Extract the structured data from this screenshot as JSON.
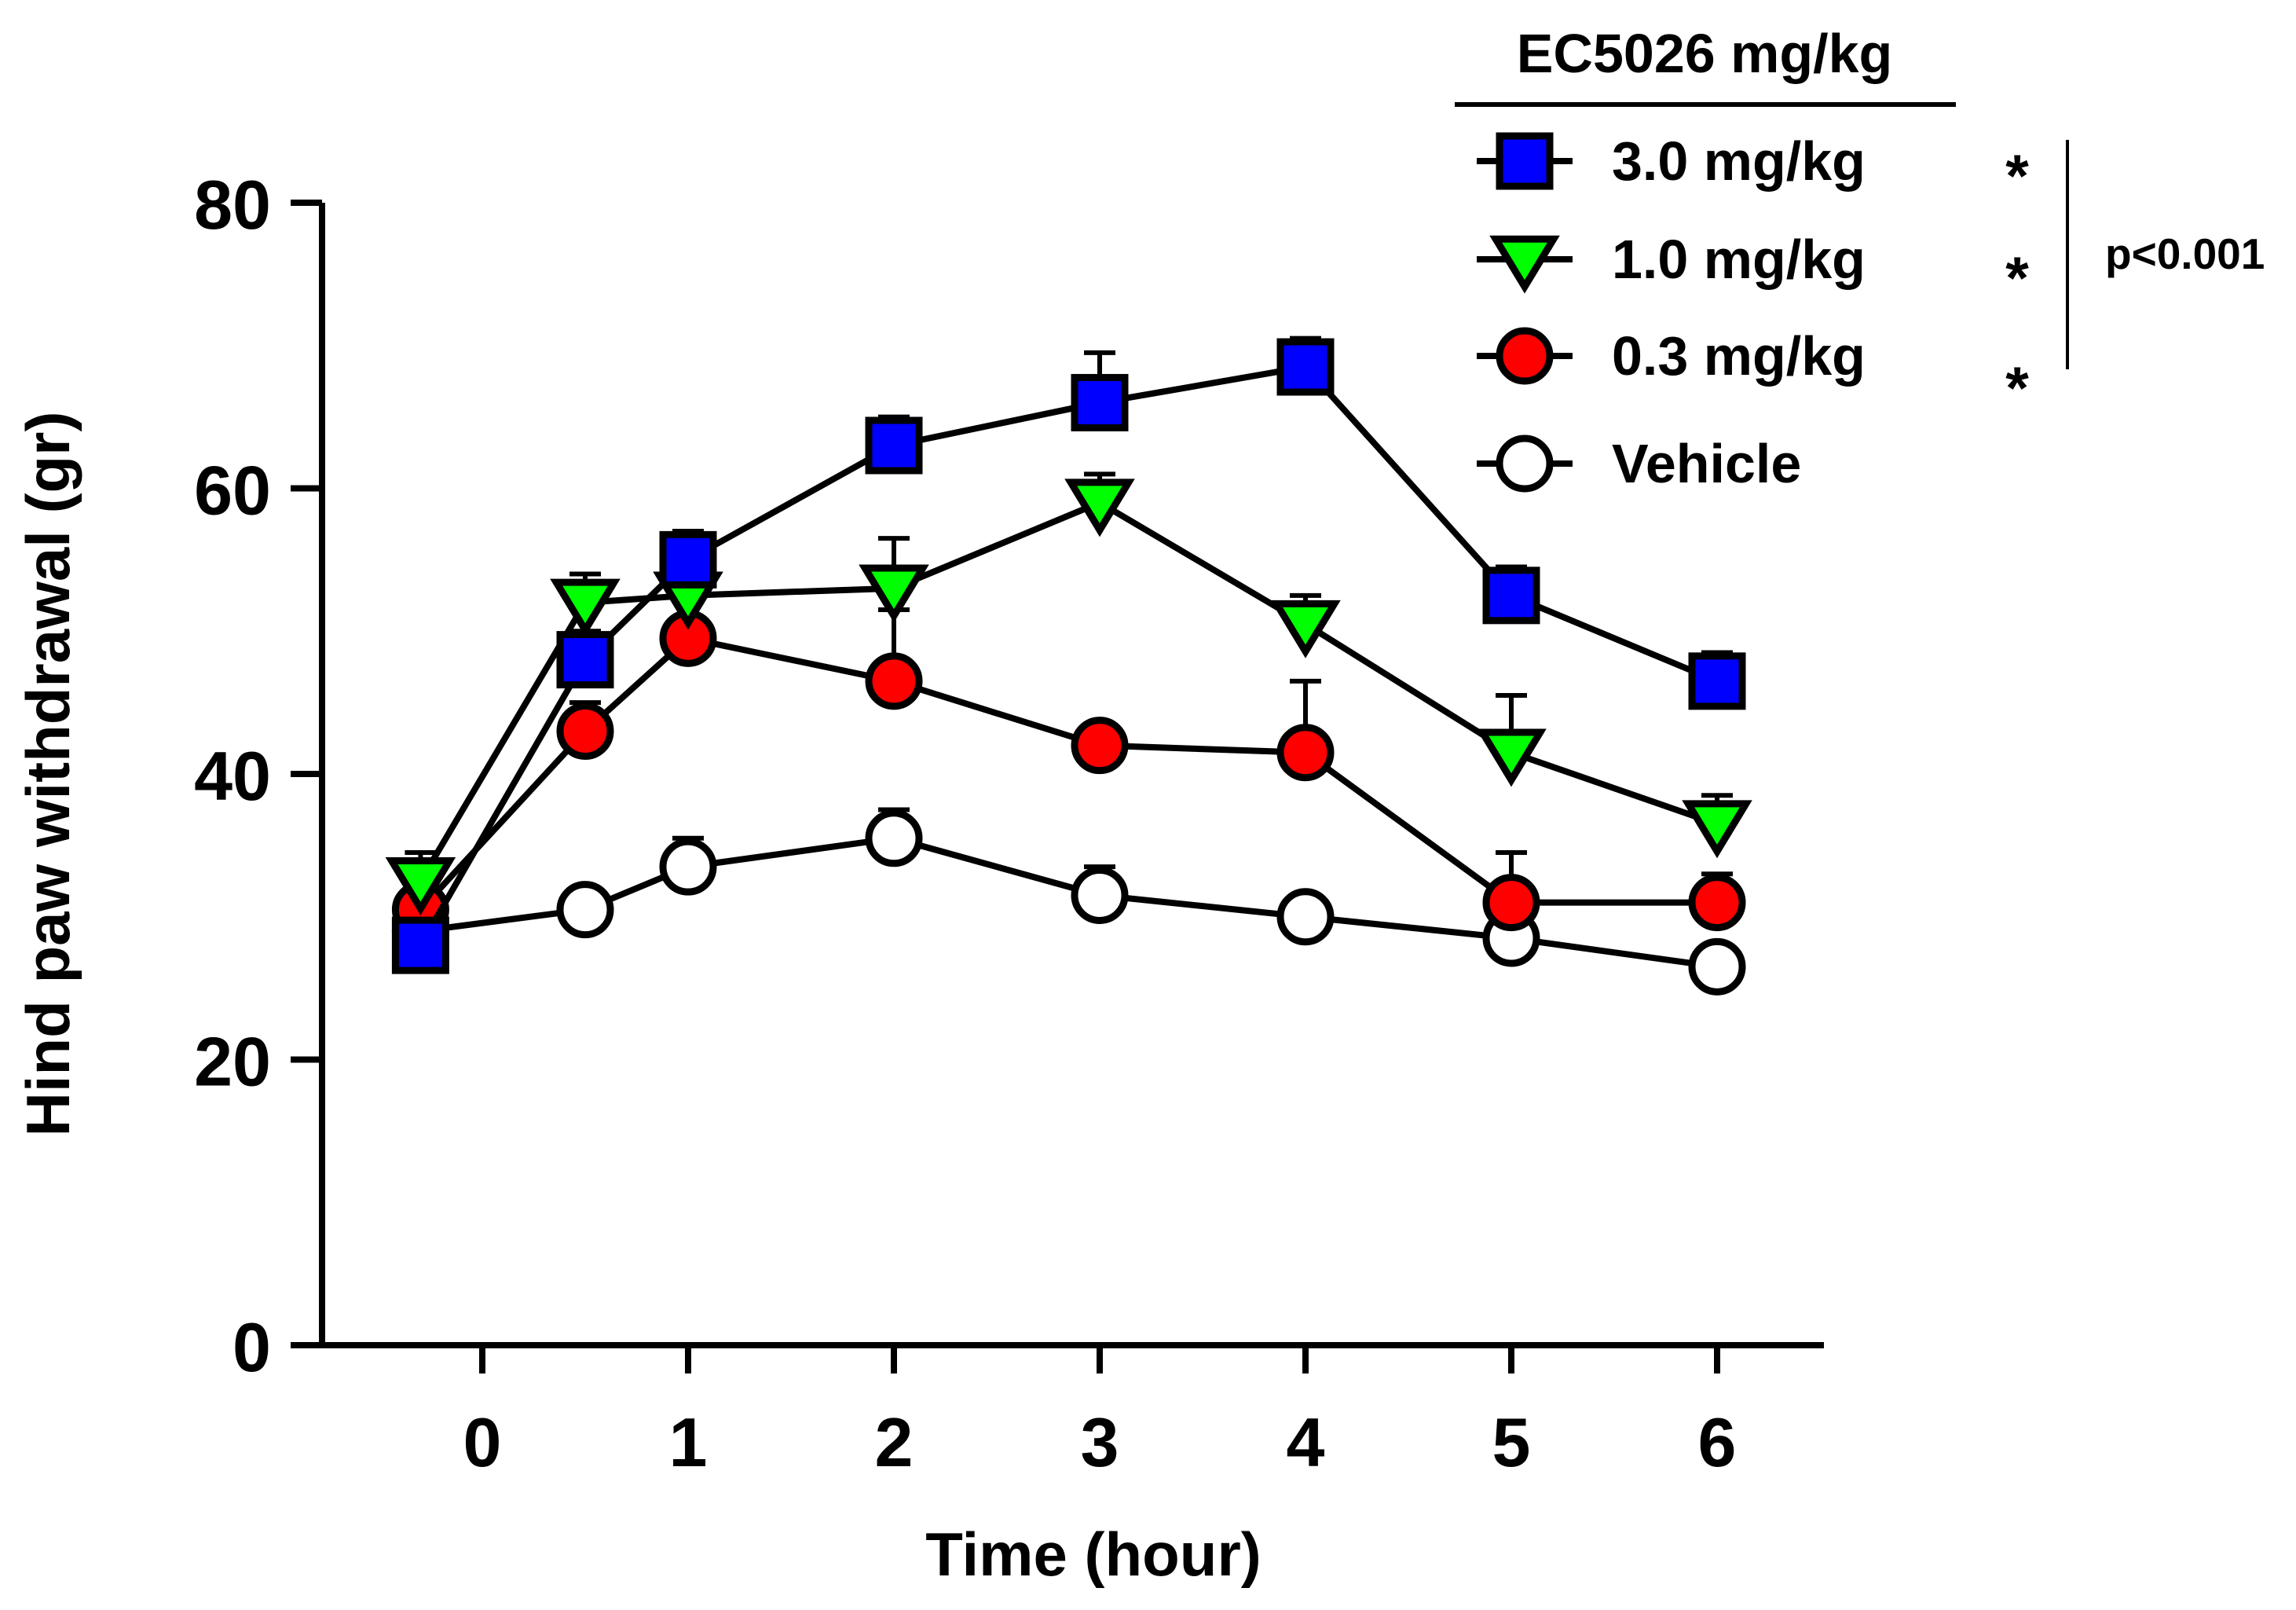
{
  "chart_data": {
    "type": "line",
    "title": "",
    "xlabel": "Time (hour)",
    "ylabel": "Hind paw withdrawal (gr)",
    "ylim": [
      0,
      80
    ],
    "yticks": [
      "0",
      "20",
      "40",
      "60",
      "80"
    ],
    "xticks": [
      "0",
      "1",
      "2",
      "3",
      "4",
      "5",
      "6"
    ],
    "x": [
      -0.3,
      0.5,
      1,
      2,
      3,
      4,
      5,
      6
    ],
    "grid": false,
    "legend_title": "EC5026 mg/kg",
    "legend_position": "top-right",
    "series": [
      {
        "name": "3.0 mg/kg",
        "marker": "square",
        "color": "#0000ff",
        "significance": "*",
        "values": [
          28,
          48,
          55,
          63,
          66,
          68.5,
          52.5,
          46.5
        ],
        "errors": [
          1.5,
          2,
          2,
          2,
          3.5,
          2,
          2,
          2
        ]
      },
      {
        "name": "1.0 mg/kg",
        "marker": "triangle-down",
        "color": "#00ff00",
        "significance": "*",
        "values": [
          32.5,
          52,
          52.5,
          53,
          59,
          50.5,
          41.5,
          36.5
        ],
        "errors": [
          2,
          2,
          2,
          3.5,
          2,
          2,
          4,
          2
        ]
      },
      {
        "name": "0.3 mg/kg",
        "marker": "circle",
        "color": "#ff0000",
        "significance": "*",
        "values": [
          30.5,
          43,
          49.5,
          46.5,
          42,
          41.5,
          31,
          31
        ],
        "errors": [
          2,
          2,
          4,
          5,
          1.5,
          5,
          3.5,
          2
        ]
      },
      {
        "name": "Vehicle",
        "marker": "circle",
        "color": "#ffffff",
        "significance": "",
        "values": [
          29,
          30.5,
          33.5,
          35.5,
          31.5,
          30,
          28.5,
          26.5
        ],
        "errors": [
          1.5,
          1.5,
          2,
          2,
          2,
          1.5,
          2,
          1.5
        ]
      }
    ],
    "annotation": "p<0.001"
  }
}
